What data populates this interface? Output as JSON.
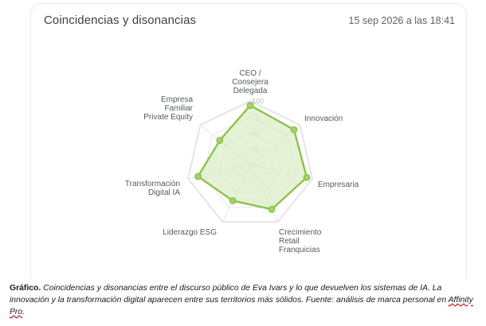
{
  "card": {
    "title": "Coincidencias y disonancias",
    "timestamp": "15 sep 2026 a las 18:41"
  },
  "colors": {
    "series_stroke": "#8bc34a",
    "series_fill": "#dcedc8",
    "grid": "#e3e5e8"
  },
  "chart_data": {
    "type": "radar",
    "axes": [
      {
        "label": "CEO / Consejera Delegada",
        "lines": [
          "CEO /",
          "Consejera",
          "Delegada"
        ]
      },
      {
        "label": "Innovación",
        "lines": [
          "Innovación"
        ]
      },
      {
        "label": "Empresaria",
        "lines": [
          "Empresaria"
        ]
      },
      {
        "label": "Crecimiento Retail Franquicias",
        "lines": [
          "Crecimiento",
          "Retail",
          "Franquicias"
        ]
      },
      {
        "label": "Liderazgo ESG",
        "lines": [
          "Liderazgo ESG"
        ]
      },
      {
        "label": "Transformación Digital IA",
        "lines": [
          "Transformación",
          "Digital IA"
        ]
      },
      {
        "label": "Empresa Familiar Private Equity",
        "lines": [
          "Empresa",
          "Familiar",
          "Private Equity"
        ]
      }
    ],
    "ticks": [
      "0",
      "25",
      "50",
      "75",
      "100"
    ],
    "range": [
      0,
      100
    ],
    "grid": true,
    "series": [
      {
        "values": [
          93,
          88,
          91,
          78,
          63,
          84,
          61
        ]
      }
    ]
  },
  "caption": {
    "label": "Gráfico.",
    "text": "Coincidencias y disonancias entre el discurso público de Eva Ivars y lo que devuelven los sistemas de IA. La innovación y la transformación digital aparecen entre sus territorios más sólidos. Fuente: análisis de marca personal en ",
    "source": "Affinity Pro",
    "end": "."
  }
}
